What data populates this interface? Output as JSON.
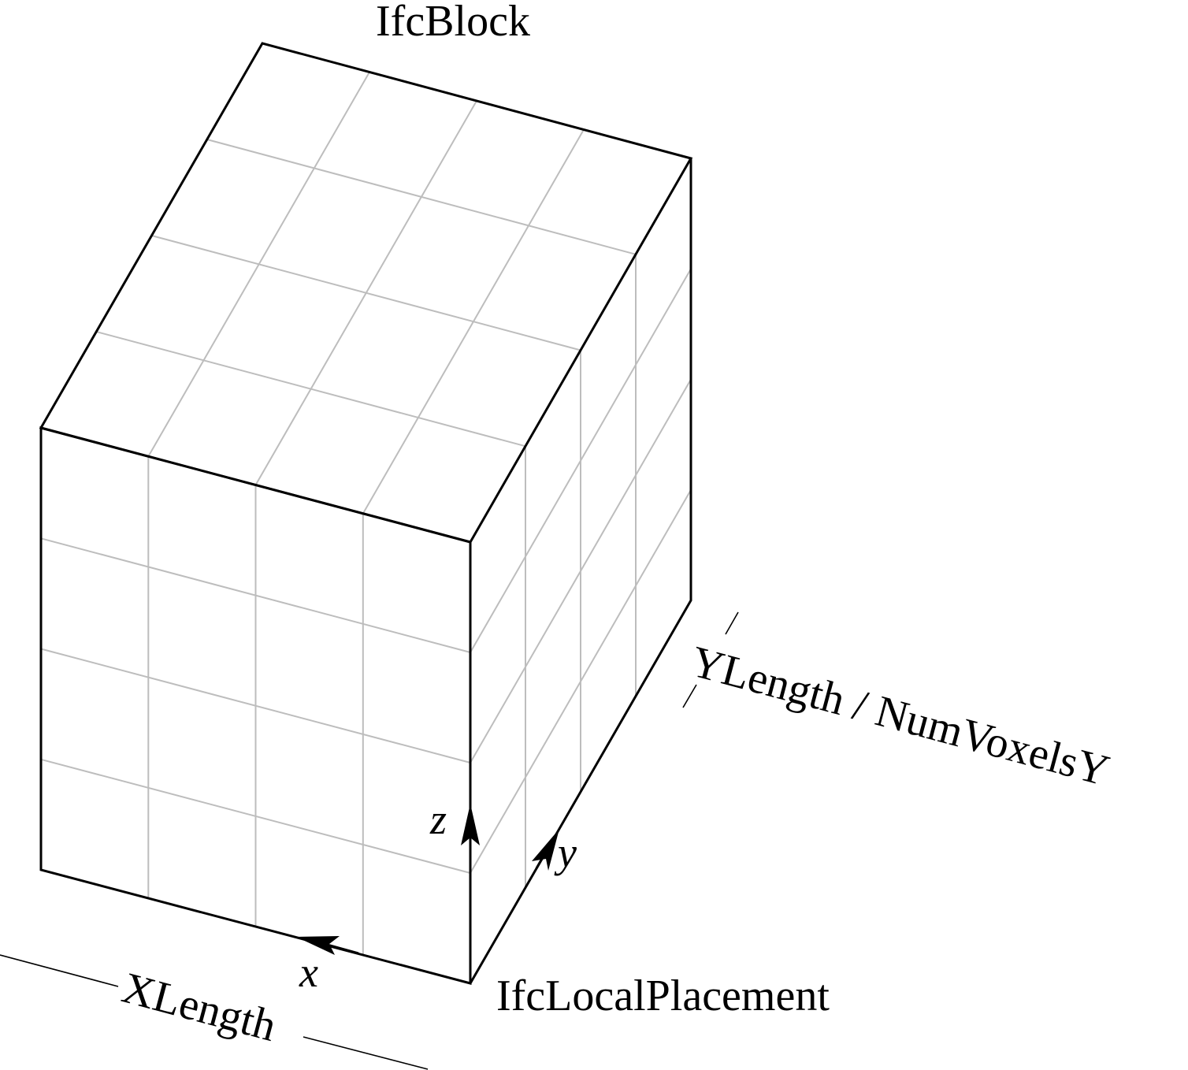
{
  "diagram": {
    "title": "IfcBlock",
    "origin_label": "IfcLocalPlacement",
    "x_dimension_label": "XLength",
    "y_dimension_label": "YLength / NumVoxelsY",
    "axes": {
      "x": "x",
      "y": "y",
      "z": "z"
    },
    "voxel_grid": {
      "divisions_x": 4,
      "divisions_y": 4,
      "divisions_z": 4
    },
    "colors": {
      "edges": "#000000",
      "grid": "#bdbdbd",
      "background": "#ffffff"
    }
  }
}
